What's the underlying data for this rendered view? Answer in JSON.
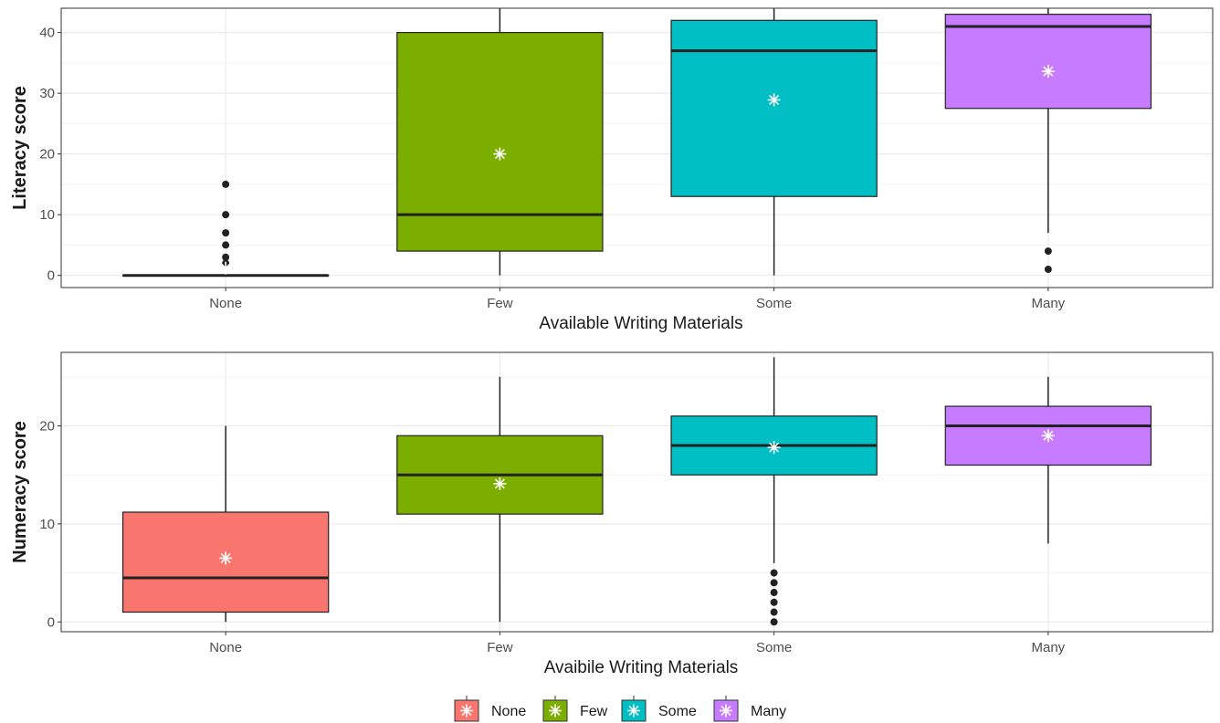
{
  "chart_data": [
    {
      "type": "boxplot",
      "xlabel": "Available Writing Materials",
      "ylabel": "Literacy score",
      "ylim": [
        -2,
        44
      ],
      "yticks": [
        0,
        10,
        20,
        30,
        40
      ],
      "categories": [
        "None",
        "Few",
        "Some",
        "Many"
      ],
      "grid": true,
      "boxes": [
        {
          "category": "None",
          "color": "#F8766D",
          "min": 0,
          "q1": 0,
          "median": 0,
          "q3": 0,
          "max": 0,
          "mean": 1.2,
          "outliers": [
            2,
            3,
            5,
            7,
            10,
            15
          ]
        },
        {
          "category": "Few",
          "color": "#7CAE00",
          "min": 0,
          "q1": 4,
          "median": 10,
          "q3": 40,
          "max": 44,
          "mean": 20,
          "outliers": []
        },
        {
          "category": "Some",
          "color": "#00BFC4",
          "min": 0,
          "q1": 13,
          "median": 37,
          "q3": 42,
          "max": 44,
          "mean": 28.9,
          "outliers": []
        },
        {
          "category": "Many",
          "color": "#C77CFF",
          "min": 7,
          "q1": 27.5,
          "median": 41,
          "q3": 43,
          "max": 44,
          "mean": 33.6,
          "outliers": [
            1,
            4
          ]
        }
      ]
    },
    {
      "type": "boxplot",
      "xlabel": "Avaibile Writing Materials",
      "ylabel": "Numeracy score",
      "ylim": [
        -1,
        27.5
      ],
      "yticks": [
        0,
        10,
        20
      ],
      "categories": [
        "None",
        "Few",
        "Some",
        "Many"
      ],
      "grid": true,
      "boxes": [
        {
          "category": "None",
          "color": "#F8766D",
          "min": 0,
          "q1": 1,
          "median": 4.5,
          "q3": 11.2,
          "max": 20,
          "mean": 6.5,
          "outliers": []
        },
        {
          "category": "Few",
          "color": "#7CAE00",
          "min": 0,
          "q1": 11,
          "median": 15,
          "q3": 19,
          "max": 25,
          "mean": 14.1,
          "outliers": []
        },
        {
          "category": "Some",
          "color": "#00BFC4",
          "min": 6,
          "q1": 15,
          "median": 18,
          "q3": 21,
          "max": 27,
          "mean": 17.8,
          "outliers": [
            0,
            1,
            2,
            3,
            4,
            5
          ]
        },
        {
          "category": "Many",
          "color": "#C77CFF",
          "min": 8,
          "q1": 16,
          "median": 20,
          "q3": 22,
          "max": 25,
          "mean": 19,
          "outliers": []
        }
      ]
    }
  ],
  "legend": {
    "position": "bottom",
    "items": [
      {
        "label": "None",
        "color": "#F8766D"
      },
      {
        "label": "Few",
        "color": "#7CAE00"
      },
      {
        "label": "Some",
        "color": "#00BFC4"
      },
      {
        "label": "Many",
        "color": "#C77CFF"
      }
    ]
  }
}
